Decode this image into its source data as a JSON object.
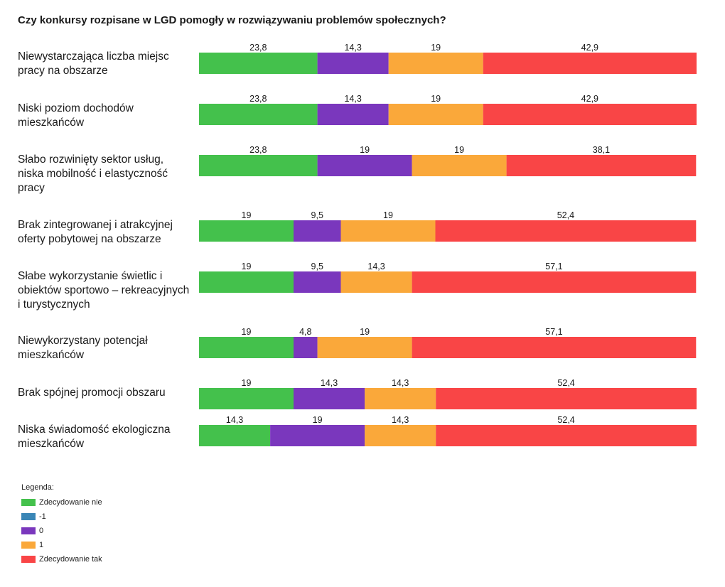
{
  "chart_data": {
    "type": "bar",
    "orientation": "horizontal",
    "stacked": true,
    "title": "Czy konkursy rozpisane w LGD pomogły w rozwiązywaniu problemów społecznych?",
    "categories": [
      "Niewystarczająca liczba miejsc pracy na obszarze",
      "Niski poziom dochodów mieszkańców",
      "Słabo rozwinięty sektor usług, niska mobilność i elastyczność pracy",
      "Brak zintegrowanej i atrakcyjnej oferty pobytowej na obszarze",
      "Słabe wykorzystanie świetlic i obiektów sportowo – rekreacyjnych i turystycznych",
      "Niewykorzystany potencjał mieszkańców",
      "Brak spójnej promocji obszaru",
      "Niska świadomość ekologiczna mieszkańców"
    ],
    "series": [
      {
        "name": "Zdecydowanie nie",
        "color": "#44c14c",
        "values": [
          23.8,
          23.8,
          23.8,
          19,
          19,
          19,
          19,
          14.3
        ]
      },
      {
        "name": "-1",
        "color": "#3a86b6",
        "values": [
          0,
          0,
          0,
          0,
          0,
          0,
          0,
          0
        ]
      },
      {
        "name": "0",
        "color": "#7a37bd",
        "values": [
          14.3,
          14.3,
          19,
          9.5,
          9.5,
          4.8,
          14.3,
          19
        ]
      },
      {
        "name": "1",
        "color": "#faa83a",
        "values": [
          19,
          19,
          19,
          19,
          14.3,
          19,
          14.3,
          14.3
        ]
      },
      {
        "name": "Zdecydowanie tak",
        "color": "#f94546",
        "values": [
          42.9,
          42.9,
          38.1,
          52.4,
          57.1,
          57.1,
          52.4,
          52.4
        ]
      }
    ],
    "xlim": [
      0,
      100
    ],
    "legend_title": "Legenda:",
    "legend_position": "bottom-left",
    "grid": false
  }
}
